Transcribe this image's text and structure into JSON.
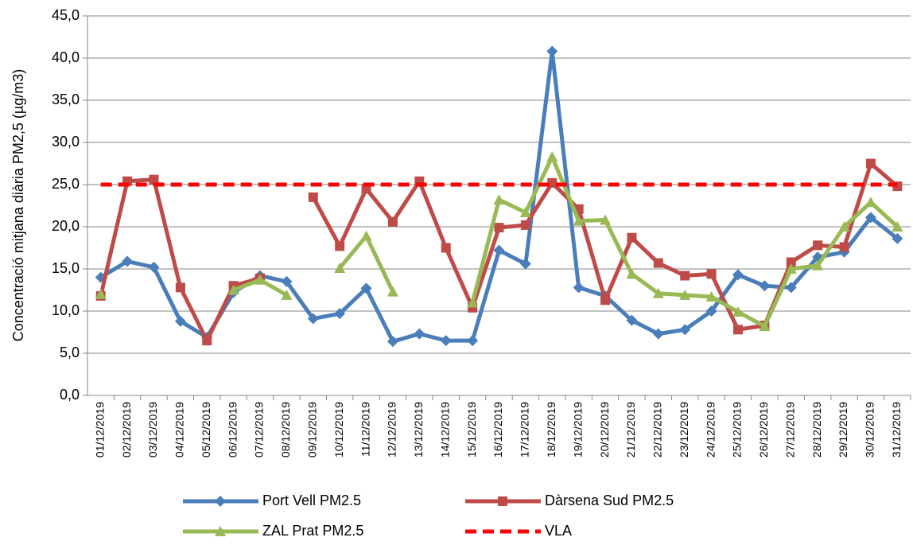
{
  "chart_data": {
    "type": "line",
    "y_label": "Concentració mitjana diària PM2,5 (µg/m3)",
    "categories": [
      "01/12/2019",
      "02/12/2019",
      "03/12/2019",
      "04/12/2019",
      "05/12/2019",
      "06/12/2019",
      "07/12/2019",
      "08/12/2019",
      "09/12/2019",
      "10/12/2019",
      "11/12/2019",
      "12/12/2019",
      "13/12/2019",
      "14/12/2019",
      "15/12/2019",
      "16/12/2019",
      "17/12/2019",
      "18/12/2019",
      "19/12/2019",
      "20/12/2019",
      "21/12/2019",
      "22/12/2019",
      "23/12/2019",
      "24/12/2019",
      "25/12/2019",
      "26/12/2019",
      "27/12/2019",
      "28/12/2019",
      "29/12/2019",
      "30/12/2019",
      "31/12/2019"
    ],
    "series": [
      {
        "name": "Port Vell PM2.5",
        "color": "#4a7ebb",
        "marker": "diamond",
        "values": [
          14.0,
          15.9,
          15.2,
          8.8,
          6.9,
          12.2,
          14.2,
          13.5,
          9.1,
          9.7,
          12.7,
          6.4,
          7.3,
          6.5,
          6.5,
          17.2,
          15.6,
          40.8,
          12.8,
          11.8,
          8.9,
          7.3,
          7.8,
          10.0,
          14.3,
          13.0,
          12.8,
          16.4,
          17.0,
          21.1,
          18.6
        ]
      },
      {
        "name": "Dàrsena Sud PM2.5",
        "color": "#be4b48",
        "marker": "square",
        "values": [
          11.8,
          25.4,
          25.6,
          12.8,
          6.5,
          13.0,
          13.9,
          null,
          23.5,
          17.7,
          24.5,
          20.6,
          25.4,
          17.5,
          10.4,
          19.9,
          20.2,
          25.2,
          22.1,
          11.3,
          18.7,
          15.7,
          14.2,
          14.4,
          7.8,
          8.3,
          15.8,
          17.8,
          17.6,
          27.5,
          24.8
        ]
      },
      {
        "name": "ZAL Prat PM2.5",
        "color": "#98b954",
        "marker": "triangle",
        "values": [
          12.0,
          null,
          null,
          null,
          null,
          12.5,
          13.7,
          11.9,
          null,
          15.1,
          18.9,
          12.3,
          null,
          null,
          11.0,
          23.2,
          21.7,
          28.3,
          20.7,
          20.8,
          14.4,
          12.1,
          11.9,
          11.7,
          9.9,
          8.2,
          15.0,
          15.4,
          20.0,
          22.9,
          20.0
        ]
      },
      {
        "name": "VLA",
        "color": "#ff0000",
        "marker": "none",
        "dashed": true,
        "values": [
          25,
          25,
          25,
          25,
          25,
          25,
          25,
          25,
          25,
          25,
          25,
          25,
          25,
          25,
          25,
          25,
          25,
          25,
          25,
          25,
          25,
          25,
          25,
          25,
          25,
          25,
          25,
          25,
          25,
          25,
          25
        ]
      }
    ],
    "ylim": [
      0,
      45
    ],
    "yticks": [
      {
        "value": 0,
        "label": "0,0"
      },
      {
        "value": 5,
        "label": "5,0"
      },
      {
        "value": 10,
        "label": "10,0"
      },
      {
        "value": 15,
        "label": "15,0"
      },
      {
        "value": 20,
        "label": "20,0"
      },
      {
        "value": 25,
        "label": "25,0"
      },
      {
        "value": 30,
        "label": "30,0"
      },
      {
        "value": 35,
        "label": "35,0"
      },
      {
        "value": 40,
        "label": "40,0"
      },
      {
        "value": 45,
        "label": "45,0"
      }
    ],
    "grid": true
  }
}
